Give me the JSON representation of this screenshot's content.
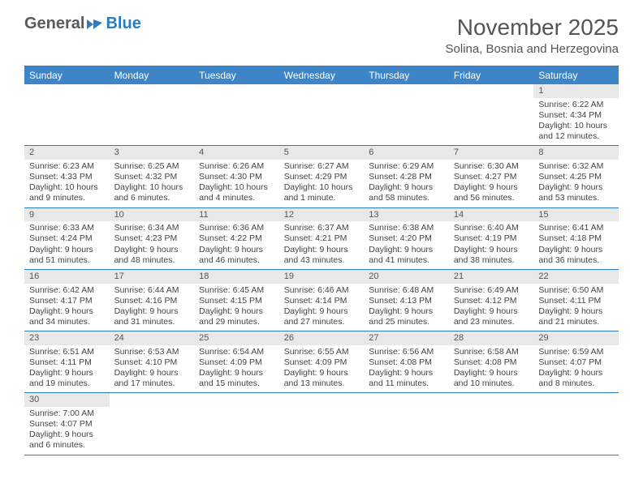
{
  "logo": {
    "word1": "General",
    "word2": "Blue"
  },
  "title": "November 2025",
  "location": "Solina, Bosnia and Herzegovina",
  "colors": {
    "header_bg": "#3d85c6",
    "header_text": "#ffffff",
    "border": "#2d7cc0",
    "daynum_bg": "#e8e8e8",
    "text": "#444444",
    "logo_gray": "#5a5a5a",
    "logo_blue": "#2d7cc0"
  },
  "day_headers": [
    "Sunday",
    "Monday",
    "Tuesday",
    "Wednesday",
    "Thursday",
    "Friday",
    "Saturday"
  ],
  "weeks": [
    [
      null,
      null,
      null,
      null,
      null,
      null,
      {
        "n": "1",
        "sunrise": "Sunrise: 6:22 AM",
        "sunset": "Sunset: 4:34 PM",
        "daylight": "Daylight: 10 hours and 12 minutes."
      }
    ],
    [
      {
        "n": "2",
        "sunrise": "Sunrise: 6:23 AM",
        "sunset": "Sunset: 4:33 PM",
        "daylight": "Daylight: 10 hours and 9 minutes."
      },
      {
        "n": "3",
        "sunrise": "Sunrise: 6:25 AM",
        "sunset": "Sunset: 4:32 PM",
        "daylight": "Daylight: 10 hours and 6 minutes."
      },
      {
        "n": "4",
        "sunrise": "Sunrise: 6:26 AM",
        "sunset": "Sunset: 4:30 PM",
        "daylight": "Daylight: 10 hours and 4 minutes."
      },
      {
        "n": "5",
        "sunrise": "Sunrise: 6:27 AM",
        "sunset": "Sunset: 4:29 PM",
        "daylight": "Daylight: 10 hours and 1 minute."
      },
      {
        "n": "6",
        "sunrise": "Sunrise: 6:29 AM",
        "sunset": "Sunset: 4:28 PM",
        "daylight": "Daylight: 9 hours and 58 minutes."
      },
      {
        "n": "7",
        "sunrise": "Sunrise: 6:30 AM",
        "sunset": "Sunset: 4:27 PM",
        "daylight": "Daylight: 9 hours and 56 minutes."
      },
      {
        "n": "8",
        "sunrise": "Sunrise: 6:32 AM",
        "sunset": "Sunset: 4:25 PM",
        "daylight": "Daylight: 9 hours and 53 minutes."
      }
    ],
    [
      {
        "n": "9",
        "sunrise": "Sunrise: 6:33 AM",
        "sunset": "Sunset: 4:24 PM",
        "daylight": "Daylight: 9 hours and 51 minutes."
      },
      {
        "n": "10",
        "sunrise": "Sunrise: 6:34 AM",
        "sunset": "Sunset: 4:23 PM",
        "daylight": "Daylight: 9 hours and 48 minutes."
      },
      {
        "n": "11",
        "sunrise": "Sunrise: 6:36 AM",
        "sunset": "Sunset: 4:22 PM",
        "daylight": "Daylight: 9 hours and 46 minutes."
      },
      {
        "n": "12",
        "sunrise": "Sunrise: 6:37 AM",
        "sunset": "Sunset: 4:21 PM",
        "daylight": "Daylight: 9 hours and 43 minutes."
      },
      {
        "n": "13",
        "sunrise": "Sunrise: 6:38 AM",
        "sunset": "Sunset: 4:20 PM",
        "daylight": "Daylight: 9 hours and 41 minutes."
      },
      {
        "n": "14",
        "sunrise": "Sunrise: 6:40 AM",
        "sunset": "Sunset: 4:19 PM",
        "daylight": "Daylight: 9 hours and 38 minutes."
      },
      {
        "n": "15",
        "sunrise": "Sunrise: 6:41 AM",
        "sunset": "Sunset: 4:18 PM",
        "daylight": "Daylight: 9 hours and 36 minutes."
      }
    ],
    [
      {
        "n": "16",
        "sunrise": "Sunrise: 6:42 AM",
        "sunset": "Sunset: 4:17 PM",
        "daylight": "Daylight: 9 hours and 34 minutes."
      },
      {
        "n": "17",
        "sunrise": "Sunrise: 6:44 AM",
        "sunset": "Sunset: 4:16 PM",
        "daylight": "Daylight: 9 hours and 31 minutes."
      },
      {
        "n": "18",
        "sunrise": "Sunrise: 6:45 AM",
        "sunset": "Sunset: 4:15 PM",
        "daylight": "Daylight: 9 hours and 29 minutes."
      },
      {
        "n": "19",
        "sunrise": "Sunrise: 6:46 AM",
        "sunset": "Sunset: 4:14 PM",
        "daylight": "Daylight: 9 hours and 27 minutes."
      },
      {
        "n": "20",
        "sunrise": "Sunrise: 6:48 AM",
        "sunset": "Sunset: 4:13 PM",
        "daylight": "Daylight: 9 hours and 25 minutes."
      },
      {
        "n": "21",
        "sunrise": "Sunrise: 6:49 AM",
        "sunset": "Sunset: 4:12 PM",
        "daylight": "Daylight: 9 hours and 23 minutes."
      },
      {
        "n": "22",
        "sunrise": "Sunrise: 6:50 AM",
        "sunset": "Sunset: 4:11 PM",
        "daylight": "Daylight: 9 hours and 21 minutes."
      }
    ],
    [
      {
        "n": "23",
        "sunrise": "Sunrise: 6:51 AM",
        "sunset": "Sunset: 4:11 PM",
        "daylight": "Daylight: 9 hours and 19 minutes."
      },
      {
        "n": "24",
        "sunrise": "Sunrise: 6:53 AM",
        "sunset": "Sunset: 4:10 PM",
        "daylight": "Daylight: 9 hours and 17 minutes."
      },
      {
        "n": "25",
        "sunrise": "Sunrise: 6:54 AM",
        "sunset": "Sunset: 4:09 PM",
        "daylight": "Daylight: 9 hours and 15 minutes."
      },
      {
        "n": "26",
        "sunrise": "Sunrise: 6:55 AM",
        "sunset": "Sunset: 4:09 PM",
        "daylight": "Daylight: 9 hours and 13 minutes."
      },
      {
        "n": "27",
        "sunrise": "Sunrise: 6:56 AM",
        "sunset": "Sunset: 4:08 PM",
        "daylight": "Daylight: 9 hours and 11 minutes."
      },
      {
        "n": "28",
        "sunrise": "Sunrise: 6:58 AM",
        "sunset": "Sunset: 4:08 PM",
        "daylight": "Daylight: 9 hours and 10 minutes."
      },
      {
        "n": "29",
        "sunrise": "Sunrise: 6:59 AM",
        "sunset": "Sunset: 4:07 PM",
        "daylight": "Daylight: 9 hours and 8 minutes."
      }
    ],
    [
      {
        "n": "30",
        "sunrise": "Sunrise: 7:00 AM",
        "sunset": "Sunset: 4:07 PM",
        "daylight": "Daylight: 9 hours and 6 minutes."
      },
      null,
      null,
      null,
      null,
      null,
      null
    ]
  ]
}
